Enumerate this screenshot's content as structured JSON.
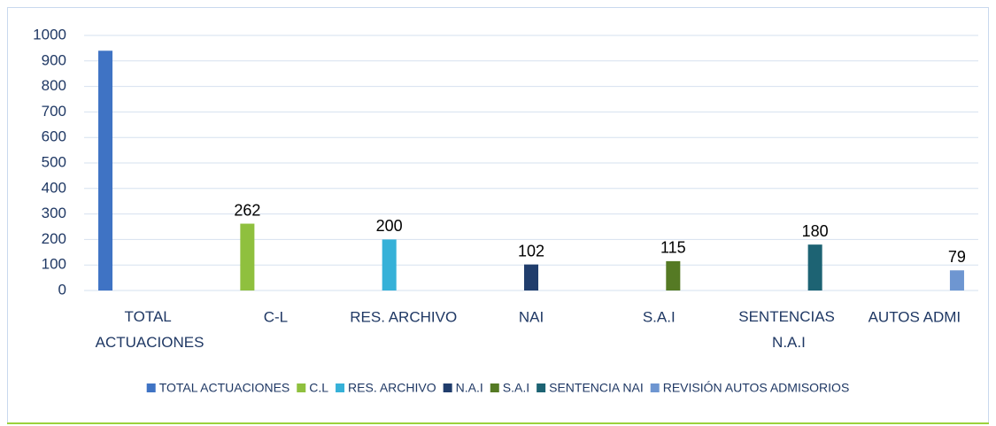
{
  "chart_data": {
    "type": "bar",
    "categories": [
      "TOTAL ACTUACIONES",
      "C-L",
      "RES. ARCHIVO",
      "NAI",
      "S.A.I",
      "SENTENCIAS N.A.I",
      "AUTOS ADMI"
    ],
    "series": [
      {
        "name": "TOTAL ACTUACIONES",
        "color": "#3f73c4",
        "data_labels": false,
        "values": [
          940,
          null,
          null,
          null,
          null,
          null,
          null
        ]
      },
      {
        "name": "C.L",
        "color": "#8fc03e",
        "data_labels": true,
        "values": [
          null,
          262,
          null,
          null,
          null,
          null,
          null
        ]
      },
      {
        "name": "RES. ARCHIVO",
        "color": "#36b1d8",
        "data_labels": true,
        "values": [
          null,
          null,
          200,
          null,
          null,
          null,
          null
        ]
      },
      {
        "name": "N.A.I",
        "color": "#203d6c",
        "data_labels": true,
        "values": [
          null,
          null,
          null,
          102,
          null,
          null,
          null
        ]
      },
      {
        "name": "S.A.I",
        "color": "#557a24",
        "data_labels": true,
        "values": [
          null,
          null,
          null,
          null,
          115,
          null,
          null
        ]
      },
      {
        "name": "SENTENCIA NAI",
        "color": "#1d6373",
        "data_labels": true,
        "values": [
          null,
          null,
          null,
          null,
          null,
          180,
          null
        ]
      },
      {
        "name": "REVISIÓN AUTOS ADMISORIOS",
        "color": "#6e96d1",
        "data_labels": true,
        "values": [
          null,
          null,
          null,
          null,
          null,
          null,
          79
        ]
      }
    ],
    "ylim": [
      0,
      1000
    ],
    "yticks": [
      0,
      100,
      200,
      300,
      400,
      500,
      600,
      700,
      800,
      900,
      1000
    ],
    "grid": true,
    "legend": "bottom"
  }
}
